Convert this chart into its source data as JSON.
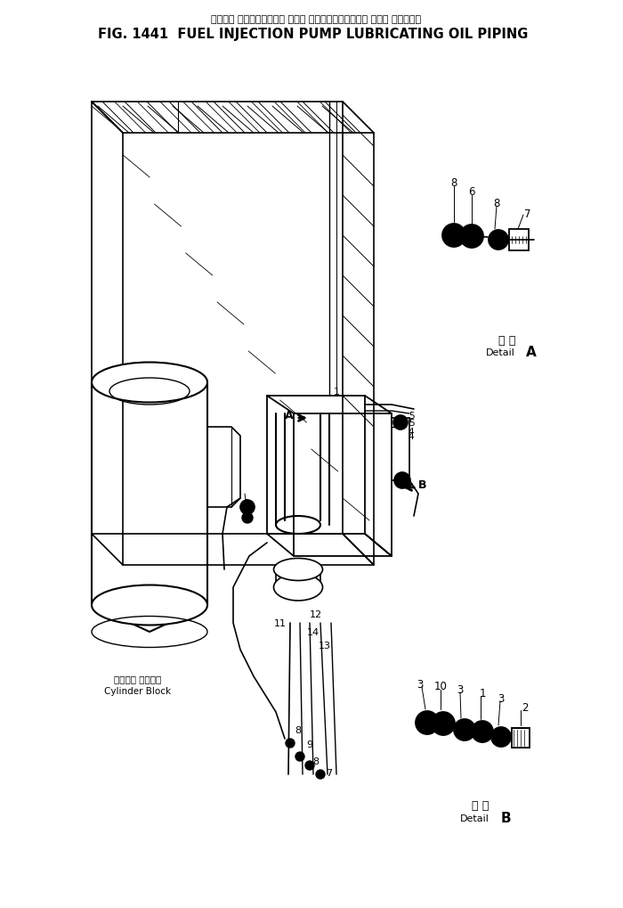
{
  "title_jp": "フェエル インジェクション ポンプ ルーブリケーティシグ オイル パイピング",
  "title_en": "FIG. 1441  FUEL INJECTION PUMP LUBRICATING OIL PIPING",
  "bg_color": "#ffffff",
  "lc": "#000000",
  "cylinder_block_jp": "シリンダ ブロック",
  "cylinder_block_en": "Cylinder Block",
  "detail_a_jp": "詳細",
  "detail_a_en": "Detail",
  "detail_b_jp": "詳細",
  "detail_b_en": "Detail"
}
